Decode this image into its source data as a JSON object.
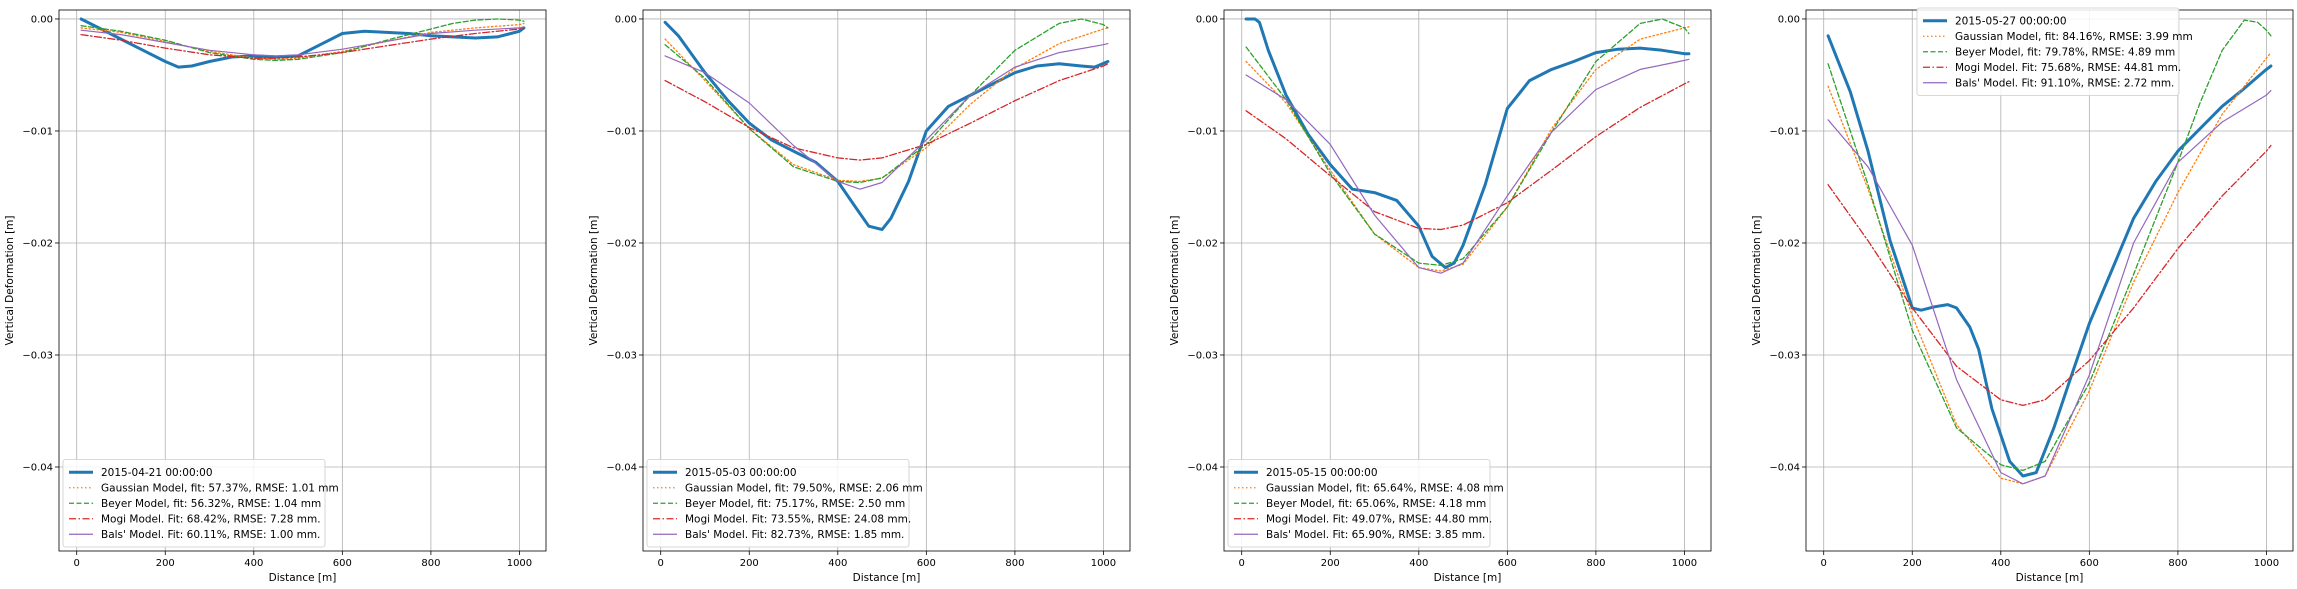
{
  "chart_data": [
    {
      "type": "line",
      "xlabel": "Distance [m]",
      "ylabel": "Vertical Deformation [m]",
      "xlim": [
        -40,
        1060
      ],
      "ylim": [
        -0.0475,
        0.0008
      ],
      "xticks": [
        0,
        200,
        400,
        600,
        800,
        1000
      ],
      "yticks": [
        0.0,
        -0.01,
        -0.02,
        -0.03,
        -0.04
      ],
      "xtick_labels": [
        "0",
        "200",
        "400",
        "600",
        "800",
        "1000"
      ],
      "ytick_labels": [
        "0.00",
        "−0.01",
        "−0.02",
        "−0.03",
        "−0.04"
      ],
      "grid": true,
      "legend_position": "lower-left",
      "series": [
        {
          "name": "2015-04-21 00:00:00",
          "color": "#1f77b4",
          "style": "solid-thick",
          "x": [
            10,
            50,
            100,
            150,
            200,
            230,
            260,
            300,
            350,
            400,
            450,
            500,
            550,
            600,
            650,
            700,
            750,
            800,
            850,
            900,
            950,
            1000,
            1010
          ],
          "y": [
            0.0,
            -0.0008,
            -0.0018,
            -0.0028,
            -0.0038,
            -0.0043,
            -0.0042,
            -0.0038,
            -0.0034,
            -0.0033,
            -0.0034,
            -0.0033,
            -0.0023,
            -0.0013,
            -0.0011,
            -0.0012,
            -0.0013,
            -0.0015,
            -0.0016,
            -0.0017,
            -0.0016,
            -0.0011,
            -0.0008
          ]
        },
        {
          "name": "Gaussian Model, fit: 57.37%, RMSE: 1.01 mm",
          "color": "#ff7f0e",
          "style": "dotted",
          "x": [
            10,
            100,
            200,
            300,
            400,
            450,
            500,
            600,
            700,
            800,
            900,
            1000,
            1010
          ],
          "y": [
            -0.0008,
            -0.0012,
            -0.002,
            -0.0029,
            -0.0035,
            -0.0036,
            -0.0035,
            -0.0029,
            -0.002,
            -0.0012,
            -0.0008,
            -0.0005,
            -0.0004
          ]
        },
        {
          "name": "Beyer Model, fit: 56.32%, RMSE: 1.04 mm",
          "color": "#2ca02c",
          "style": "dashed",
          "x": [
            10,
            100,
            200,
            300,
            400,
            450,
            500,
            600,
            700,
            800,
            850,
            900,
            950,
            1000,
            1010
          ],
          "y": [
            -0.0006,
            -0.0011,
            -0.0019,
            -0.003,
            -0.0036,
            -0.0037,
            -0.0036,
            -0.003,
            -0.0019,
            -0.0009,
            -0.0004,
            -0.0001,
            0.0,
            -0.0001,
            -0.0002
          ]
        },
        {
          "name": "Mogi Model. Fit: 68.42%, RMSE: 7.28 mm.",
          "color": "#d62728",
          "style": "dashdot",
          "x": [
            10,
            100,
            200,
            300,
            400,
            450,
            500,
            600,
            700,
            800,
            900,
            1000,
            1010
          ],
          "y": [
            -0.0014,
            -0.0019,
            -0.0026,
            -0.0032,
            -0.0035,
            -0.0035,
            -0.0034,
            -0.003,
            -0.0024,
            -0.0018,
            -0.0013,
            -0.0009,
            -0.0008
          ]
        },
        {
          "name": "Bals' Model. Fit: 60.11%, RMSE: 1.00 mm.",
          "color": "#9467bd",
          "style": "solid",
          "x": [
            10,
            100,
            200,
            300,
            400,
            450,
            500,
            600,
            700,
            800,
            900,
            1000,
            1010
          ],
          "y": [
            -0.001,
            -0.0014,
            -0.0021,
            -0.0028,
            -0.0032,
            -0.0033,
            -0.0032,
            -0.0027,
            -0.002,
            -0.0013,
            -0.001,
            -0.0008,
            -0.0007
          ]
        }
      ]
    },
    {
      "type": "line",
      "xlabel": "Distance [m]",
      "ylabel": "Vertical Deformation [m]",
      "xlim": [
        -40,
        1060
      ],
      "ylim": [
        -0.0475,
        0.0008
      ],
      "xticks": [
        0,
        200,
        400,
        600,
        800,
        1000
      ],
      "yticks": [
        0.0,
        -0.01,
        -0.02,
        -0.03,
        -0.04
      ],
      "xtick_labels": [
        "0",
        "200",
        "400",
        "600",
        "800",
        "1000"
      ],
      "ytick_labels": [
        "0.00",
        "−0.01",
        "−0.02",
        "−0.03",
        "−0.04"
      ],
      "grid": true,
      "legend_position": "lower-left",
      "series": [
        {
          "name": "2015-05-03 00:00:00",
          "color": "#1f77b4",
          "style": "solid-thick",
          "x": [
            10,
            40,
            100,
            150,
            200,
            250,
            300,
            350,
            400,
            440,
            470,
            500,
            520,
            560,
            600,
            650,
            700,
            750,
            800,
            850,
            900,
            950,
            980,
            1010
          ],
          "y": [
            -0.0003,
            -0.0015,
            -0.0048,
            -0.0072,
            -0.0093,
            -0.0108,
            -0.0118,
            -0.0128,
            -0.0145,
            -0.0168,
            -0.0185,
            -0.0188,
            -0.0178,
            -0.0145,
            -0.01,
            -0.0078,
            -0.0068,
            -0.0058,
            -0.0048,
            -0.0042,
            -0.004,
            -0.0042,
            -0.0043,
            -0.0038
          ]
        },
        {
          "name": "Gaussian Model, fit: 79.50%, RMSE: 2.06 mm",
          "color": "#ff7f0e",
          "style": "dotted",
          "x": [
            10,
            100,
            200,
            300,
            400,
            450,
            500,
            600,
            700,
            800,
            900,
            1000,
            1010
          ],
          "y": [
            -0.0018,
            -0.0055,
            -0.0098,
            -0.013,
            -0.0144,
            -0.0145,
            -0.0142,
            -0.0115,
            -0.0076,
            -0.0044,
            -0.0022,
            -0.0009,
            -0.0008
          ]
        },
        {
          "name": "Beyer Model, fit: 75.17%, RMSE: 2.50 mm",
          "color": "#2ca02c",
          "style": "dashed",
          "x": [
            10,
            100,
            200,
            300,
            400,
            450,
            500,
            600,
            700,
            800,
            900,
            950,
            1000,
            1010
          ],
          "y": [
            -0.0023,
            -0.0053,
            -0.0098,
            -0.0132,
            -0.0145,
            -0.0146,
            -0.0142,
            -0.0112,
            -0.0068,
            -0.0028,
            -0.0004,
            0.0,
            -0.0005,
            -0.0008
          ]
        },
        {
          "name": "Mogi Model. Fit: 73.55%, RMSE: 24.08 mm.",
          "color": "#d62728",
          "style": "dashdot",
          "x": [
            10,
            100,
            200,
            300,
            400,
            450,
            500,
            600,
            700,
            800,
            900,
            1000,
            1010
          ],
          "y": [
            -0.0055,
            -0.0074,
            -0.0097,
            -0.0115,
            -0.0124,
            -0.0126,
            -0.0124,
            -0.0112,
            -0.0093,
            -0.0073,
            -0.0055,
            -0.0042,
            -0.004
          ]
        },
        {
          "name": "Bals' Model. Fit: 82.73%, RMSE: 1.85 mm.",
          "color": "#9467bd",
          "style": "solid",
          "x": [
            10,
            100,
            200,
            300,
            400,
            450,
            500,
            600,
            700,
            800,
            900,
            1000,
            1010
          ],
          "y": [
            -0.0033,
            -0.0048,
            -0.0075,
            -0.0113,
            -0.0145,
            -0.0152,
            -0.0146,
            -0.0108,
            -0.0068,
            -0.0043,
            -0.003,
            -0.0023,
            -0.0022
          ]
        }
      ]
    },
    {
      "type": "line",
      "xlabel": "Distance [m]",
      "ylabel": "Vertical Deformation [m]",
      "xlim": [
        -40,
        1060
      ],
      "ylim": [
        -0.0475,
        0.0008
      ],
      "xticks": [
        0,
        200,
        400,
        600,
        800,
        1000
      ],
      "yticks": [
        0.0,
        -0.01,
        -0.02,
        -0.03,
        -0.04
      ],
      "xtick_labels": [
        "0",
        "200",
        "400",
        "600",
        "800",
        "1000"
      ],
      "ytick_labels": [
        "0.00",
        "−0.01",
        "−0.02",
        "−0.03",
        "−0.04"
      ],
      "grid": true,
      "legend_position": "lower-left",
      "series": [
        {
          "name": "2015-05-15 00:00:00",
          "color": "#1f77b4",
          "style": "solid-thick",
          "x": [
            10,
            30,
            40,
            60,
            100,
            150,
            200,
            250,
            300,
            350,
            400,
            430,
            460,
            480,
            500,
            550,
            600,
            650,
            700,
            750,
            800,
            850,
            900,
            950,
            1000,
            1010
          ],
          "y": [
            0.0,
            0.0,
            -0.0003,
            -0.0028,
            -0.0068,
            -0.0103,
            -0.013,
            -0.0152,
            -0.0155,
            -0.0162,
            -0.0185,
            -0.0212,
            -0.0222,
            -0.0218,
            -0.0202,
            -0.0148,
            -0.008,
            -0.0055,
            -0.0045,
            -0.0038,
            -0.003,
            -0.0027,
            -0.0026,
            -0.0028,
            -0.0031,
            -0.0031
          ]
        },
        {
          "name": "Gaussian Model, fit: 65.64%, RMSE: 4.08 mm",
          "color": "#ff7f0e",
          "style": "dotted",
          "x": [
            10,
            100,
            200,
            300,
            400,
            450,
            500,
            600,
            700,
            800,
            900,
            1000,
            1010
          ],
          "y": [
            -0.0038,
            -0.0075,
            -0.0135,
            -0.0192,
            -0.0222,
            -0.0225,
            -0.0219,
            -0.0168,
            -0.0098,
            -0.0045,
            -0.0018,
            -0.0008,
            -0.0007
          ]
        },
        {
          "name": "Beyer Model, fit: 65.06%, RMSE: 4.18 mm",
          "color": "#2ca02c",
          "style": "dashed",
          "x": [
            10,
            100,
            200,
            300,
            400,
            450,
            500,
            600,
            700,
            800,
            900,
            950,
            1000,
            1010
          ],
          "y": [
            -0.0025,
            -0.0072,
            -0.0138,
            -0.0192,
            -0.0218,
            -0.022,
            -0.0214,
            -0.0168,
            -0.0101,
            -0.0038,
            -0.0004,
            0.0,
            -0.0008,
            -0.0013
          ]
        },
        {
          "name": "Mogi Model. Fit: 49.07%, RMSE: 44.80 mm.",
          "color": "#d62728",
          "style": "dashdot",
          "x": [
            10,
            100,
            200,
            300,
            400,
            450,
            500,
            600,
            700,
            800,
            900,
            1000,
            1010
          ],
          "y": [
            -0.0082,
            -0.0107,
            -0.014,
            -0.0172,
            -0.0187,
            -0.0188,
            -0.0184,
            -0.0164,
            -0.0135,
            -0.0105,
            -0.0079,
            -0.0058,
            -0.0056
          ]
        },
        {
          "name": "Bals' Model. Fit: 65.90%, RMSE: 3.85 mm.",
          "color": "#9467bd",
          "style": "solid",
          "x": [
            10,
            100,
            200,
            300,
            400,
            450,
            500,
            600,
            700,
            800,
            900,
            1000,
            1010
          ],
          "y": [
            -0.005,
            -0.0072,
            -0.0112,
            -0.0175,
            -0.0222,
            -0.0227,
            -0.0218,
            -0.0158,
            -0.0101,
            -0.0063,
            -0.0045,
            -0.0037,
            -0.0036
          ]
        }
      ]
    },
    {
      "type": "line",
      "xlabel": "Distance [m]",
      "ylabel": "Vertical Deformation [m]",
      "xlim": [
        -40,
        1060
      ],
      "ylim": [
        -0.0475,
        0.0008
      ],
      "xticks": [
        0,
        200,
        400,
        600,
        800,
        1000
      ],
      "yticks": [
        0.0,
        -0.01,
        -0.02,
        -0.03,
        -0.04
      ],
      "xtick_labels": [
        "0",
        "200",
        "400",
        "600",
        "800",
        "1000"
      ],
      "ytick_labels": [
        "0.00",
        "−0.01",
        "−0.02",
        "−0.03",
        "−0.04"
      ],
      "grid": true,
      "legend_position": "upper-right",
      "series": [
        {
          "name": "2015-05-27 00:00:00",
          "color": "#1f77b4",
          "style": "solid-thick",
          "x": [
            10,
            40,
            60,
            100,
            150,
            200,
            220,
            250,
            280,
            300,
            330,
            350,
            380,
            420,
            450,
            480,
            520,
            560,
            600,
            650,
            700,
            750,
            800,
            850,
            900,
            950,
            1000,
            1010
          ],
          "y": [
            -0.0015,
            -0.0045,
            -0.0065,
            -0.0118,
            -0.0198,
            -0.0258,
            -0.026,
            -0.0257,
            -0.0255,
            -0.0258,
            -0.0275,
            -0.0295,
            -0.0348,
            -0.0395,
            -0.0408,
            -0.0405,
            -0.0365,
            -0.0318,
            -0.0272,
            -0.0225,
            -0.0178,
            -0.0145,
            -0.0118,
            -0.0098,
            -0.0078,
            -0.0062,
            -0.0045,
            -0.0042
          ]
        },
        {
          "name": "Gaussian Model, fit: 84.16%, RMSE: 3.99 mm",
          "color": "#ff7f0e",
          "style": "dotted",
          "x": [
            10,
            100,
            200,
            300,
            400,
            450,
            500,
            600,
            700,
            800,
            900,
            1000,
            1010
          ],
          "y": [
            -0.006,
            -0.0152,
            -0.0265,
            -0.0362,
            -0.041,
            -0.0415,
            -0.0408,
            -0.0332,
            -0.0235,
            -0.0155,
            -0.0085,
            -0.0035,
            -0.003
          ]
        },
        {
          "name": "Beyer Model, fit: 79.78%, RMSE: 4.89 mm",
          "color": "#2ca02c",
          "style": "dashed",
          "x": [
            10,
            100,
            200,
            300,
            400,
            450,
            500,
            600,
            700,
            800,
            850,
            900,
            950,
            980,
            1000,
            1010
          ],
          "y": [
            -0.004,
            -0.0148,
            -0.0278,
            -0.0365,
            -0.0398,
            -0.0403,
            -0.0395,
            -0.0325,
            -0.0228,
            -0.0128,
            -0.0075,
            -0.0028,
            -0.0001,
            -0.0003,
            -0.001,
            -0.0015
          ]
        },
        {
          "name": "Mogi Model. Fit: 75.68%, RMSE: 44.81 mm.",
          "color": "#d62728",
          "style": "dashdot",
          "x": [
            10,
            100,
            200,
            300,
            400,
            450,
            500,
            600,
            700,
            800,
            900,
            1000,
            1010
          ],
          "y": [
            -0.0148,
            -0.0198,
            -0.0258,
            -0.031,
            -0.034,
            -0.0345,
            -0.034,
            -0.0305,
            -0.0258,
            -0.0205,
            -0.0158,
            -0.0118,
            -0.0113
          ]
        },
        {
          "name": "Bals' Model. Fit: 91.10%, RMSE: 2.72 mm.",
          "color": "#9467bd",
          "style": "solid",
          "x": [
            10,
            100,
            200,
            300,
            400,
            450,
            500,
            600,
            700,
            800,
            900,
            1000,
            1010
          ],
          "y": [
            -0.009,
            -0.0132,
            -0.0202,
            -0.0322,
            -0.0405,
            -0.0415,
            -0.0408,
            -0.0318,
            -0.02,
            -0.0128,
            -0.0092,
            -0.0068,
            -0.0064
          ]
        }
      ]
    }
  ]
}
